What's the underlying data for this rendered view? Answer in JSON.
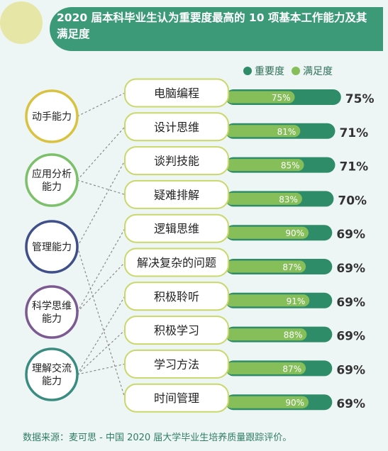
{
  "header": {
    "title": "2020 届本科毕业生认为重要度最高的 10 项基本工作能力及其满足度"
  },
  "legend": {
    "importance_label": "重要度",
    "satisfaction_label": "满足度"
  },
  "colors": {
    "importance": "#2f8c68",
    "satisfaction": "#86bf5a",
    "header": "#3d9a79"
  },
  "footer": {
    "source": "数据来源：麦可思 - 中国 2020 届大学毕业生培养质量跟踪评价。"
  },
  "chart_data": {
    "type": "bar",
    "series_names": [
      "重要度",
      "满足度"
    ],
    "categories": [
      "电脑编程",
      "设计思维",
      "谈判技能",
      "疑难排解",
      "逻辑思维",
      "解决复杂的问题",
      "积极聆听",
      "积极学习",
      "学习方法",
      "时间管理"
    ],
    "importance": [
      75,
      71,
      71,
      70,
      69,
      69,
      69,
      69,
      69,
      69
    ],
    "satisfaction": [
      75,
      81,
      85,
      83,
      90,
      87,
      91,
      88,
      87,
      90
    ],
    "importance_labels": [
      "75%",
      "71%",
      "71%",
      "70%",
      "69%",
      "69%",
      "69%",
      "69%",
      "69%",
      "69%"
    ],
    "satisfaction_labels": [
      "75%",
      "81%",
      "85%",
      "83%",
      "90%",
      "87%",
      "91%",
      "88%",
      "87%",
      "90%"
    ],
    "groups": [
      {
        "label": [
          "动手能力"
        ],
        "color": "#d8c23f",
        "abilities": [
          0
        ]
      },
      {
        "label": [
          "应用分析",
          "能力"
        ],
        "color": "#7cc06a",
        "abilities": [
          1,
          3
        ]
      },
      {
        "label": [
          "管理能力"
        ],
        "color": "#3e4f8a",
        "abilities": [
          2,
          9
        ]
      },
      {
        "label": [
          "科学思维",
          "能力"
        ],
        "color": "#7b5a92",
        "abilities": [
          4,
          5
        ]
      },
      {
        "label": [
          "理解交流",
          "能力"
        ],
        "color": "#3b8c80",
        "abilities": [
          6,
          7,
          8
        ]
      }
    ]
  }
}
